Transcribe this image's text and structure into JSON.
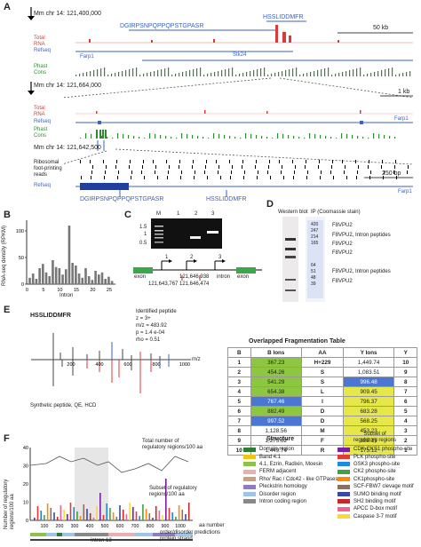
{
  "panels": {
    "A": "A",
    "B": "B",
    "C": "C",
    "D": "D",
    "E": "E",
    "F": "F"
  },
  "panelA": {
    "coord1": "Mm chr 14: 121,400,000",
    "coord2": "Mm chr 14: 121,664,000",
    "coord3": "Mm chr 14: 121,642,500",
    "peptide1": "DGIRPSNPQPPQPSTGPASR",
    "peptide2": "HSSLIDDMFR",
    "scale1": "50 kb",
    "scale2": "1 kb",
    "scale3": "250 bp",
    "track_total": "Total",
    "track_rna": "RNA",
    "track_refseq": "Refseq",
    "track_phast": "Phast",
    "track_cons": "Cons",
    "gene_farp1": "Farp1",
    "gene_stk24": "Stk24",
    "ribo1": "Ribosomal",
    "ribo2": "foot-printing",
    "ribo3": "reads"
  },
  "panelB": {
    "ylabel": "RNA-seq density (RPKM)",
    "xlabel": "Intron",
    "yticks": [
      "0",
      "50",
      "100"
    ],
    "xticks": [
      "0",
      "5",
      "10",
      "15",
      "20",
      "25"
    ]
  },
  "chart_data": {
    "type": "bar",
    "ylabel": "RNA-seq density (RPKM)",
    "xlabel": "Intron",
    "ylim": [
      0,
      120
    ],
    "categories": [
      1,
      2,
      3,
      4,
      5,
      6,
      7,
      8,
      9,
      10,
      11,
      12,
      13,
      14,
      15,
      16,
      17,
      18,
      19,
      20,
      21,
      22,
      23,
      24,
      25,
      26
    ],
    "values": [
      12,
      20,
      10,
      30,
      38,
      22,
      15,
      45,
      32,
      30,
      18,
      28,
      110,
      40,
      35,
      20,
      12,
      30,
      15,
      8,
      25,
      18,
      22,
      10,
      14,
      6
    ]
  },
  "panelC": {
    "lanes": [
      "M",
      "1",
      "2",
      "3"
    ],
    "markers": [
      "1.5",
      "1",
      "0.5"
    ],
    "exon": "exon",
    "intron": "intron",
    "pos1": "121,643,767",
    "pos2": "121,646,938",
    "pos3": "121,646,474",
    "primers": [
      "1",
      "2",
      "3"
    ]
  },
  "panelD": {
    "title1": "Western blot",
    "title2": "IP (Coomassie stain)",
    "markers": [
      "420",
      "247",
      "214",
      "165",
      "64",
      "51",
      "48",
      "39"
    ],
    "bands": [
      "F8VPU2",
      "F8VPU2, Intron peptides",
      "F8VPU2",
      "F8VPU2",
      "F8VPU2, Intron peptides",
      "F8VPU2"
    ]
  },
  "panelE": {
    "peptide": "HSSLIDDMFR",
    "ident_title": "Identified peptide",
    "z": "z = 3+",
    "mz": "m/z = 483.92",
    "p": "p = 1.4 e-04",
    "rho": "rho = 0.51",
    "xaxis": "m/z",
    "ticks": [
      "200",
      "400",
      "600",
      "800",
      "1000"
    ],
    "synthetic": "Synthetic peptide, QE, HCD",
    "table_title": "Overlapped Fragmentation Table",
    "headers": [
      "B",
      "B Ions",
      "AA",
      "Y Ions",
      "Y"
    ],
    "subheader": "H+229",
    "rows": [
      [
        "1",
        "367.23",
        "H+229",
        "1,449.74",
        "10"
      ],
      [
        "2",
        "454.26",
        "S",
        "1,083.51",
        "9"
      ],
      [
        "3",
        "541.29",
        "S",
        "996.48",
        "8"
      ],
      [
        "4",
        "654.38",
        "L",
        "909.45",
        "7"
      ],
      [
        "5",
        "767.46",
        "I",
        "796.37",
        "6"
      ],
      [
        "6",
        "882.49",
        "D",
        "683.28",
        "5"
      ],
      [
        "7",
        "997.52",
        "D",
        "568.25",
        "4"
      ],
      [
        "8",
        "1,128.56",
        "M",
        "453.23",
        "3"
      ],
      [
        "9",
        "1,275.62",
        "F",
        "322.19",
        "2"
      ],
      [
        "10",
        "1,449.74",
        "R",
        "175.12",
        "1"
      ]
    ]
  },
  "panelF": {
    "ylabel1": "Number of regulatory",
    "ylabel2": "regions/100 aa",
    "yticks": [
      "0",
      "10",
      "20",
      "30",
      "40"
    ],
    "xticks": [
      "100",
      "200",
      "300",
      "400",
      "500",
      "600",
      "700",
      "800",
      "900",
      "1000"
    ],
    "xaxis": "aa number",
    "total_label1": "Total number of",
    "total_label2": "regulatory regions/100 aa",
    "subset_label1": "Subset of regulatory",
    "subset_label2": "regions/100 aa",
    "order_label": "order/disorder predictions",
    "protein_label": "protein strand",
    "intron_label": "Intron 13",
    "structure_title": "Structure",
    "structure": [
      {
        "label": "Domain region",
        "color": "#2e7d32"
      },
      {
        "label": "Band 4.1",
        "color": "#f0c419"
      },
      {
        "label": "4.1, Ezrin, Radixin, Moesin",
        "color": "#8bc34a"
      },
      {
        "label": "FERM adjacent",
        "color": "#e8b0b0"
      },
      {
        "label": "Rho/ Rac / Cdc42 - like GTPases",
        "color": "#c9a27a"
      },
      {
        "label": "Pleckstrin homology",
        "color": "#8e7cc3"
      },
      {
        "label": "Disorder region",
        "color": "#9ec5e8"
      },
      {
        "label": "Intron coding region",
        "color": "#888888"
      }
    ],
    "subset_title1": "Subset of",
    "subset_title2": "regulatory regions",
    "subset": [
      {
        "label": "CDK-CKS1 phospho-site",
        "color": "#7b1fa2"
      },
      {
        "label": "PLK phospho-site",
        "color": "#e53935"
      },
      {
        "label": "GSK3 phospho-site",
        "color": "#1e88e5"
      },
      {
        "label": "CK2 phospho-site",
        "color": "#43a047"
      },
      {
        "label": "CK1phospho-site",
        "color": "#fb8c00"
      },
      {
        "label": "SCF-FBW7 clevage motif",
        "color": "#8d6e63"
      },
      {
        "label": "SUMO binding motif",
        "color": "#3949ab"
      },
      {
        "label": "SH2 binding motif",
        "color": "#c62828"
      },
      {
        "label": "APCC D-box motif",
        "color": "#f06292"
      },
      {
        "label": "Caspase 3-7 motif",
        "color": "#fdd835"
      }
    ]
  }
}
